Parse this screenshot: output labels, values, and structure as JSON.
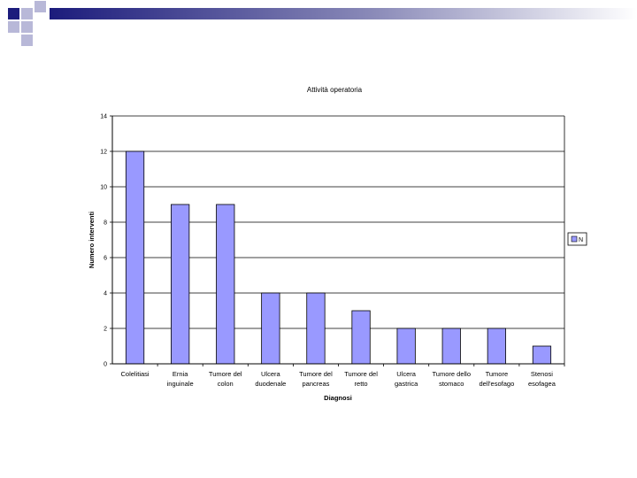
{
  "colors": {
    "bar": "#9999ff",
    "bar_stroke": "#000000",
    "grid": "#000000",
    "deco_dark": "#1c1c7c",
    "deco_light": "#b8b8d8"
  },
  "chart_data": {
    "type": "bar",
    "title": "Attività operatoria",
    "xlabel": "Diagnosi",
    "ylabel": "Numero interventi",
    "ylim": [
      0,
      14
    ],
    "yticks": [
      0,
      2,
      4,
      6,
      8,
      10,
      12,
      14
    ],
    "grid": true,
    "legend_position": "right",
    "categories": [
      [
        "Colelitiasi"
      ],
      [
        "Ernia",
        "inguinale"
      ],
      [
        "Tumore del",
        "colon"
      ],
      [
        "Ulcera",
        "duodenale"
      ],
      [
        "Tumore del",
        "pancreas"
      ],
      [
        "Tumore del",
        "retto"
      ],
      [
        "Ulcera",
        "gastrica"
      ],
      [
        "Tumore dello",
        "stomaco"
      ],
      [
        "Tumore",
        "dell'esofago"
      ],
      [
        "Stenosi",
        "esofagea"
      ]
    ],
    "series": [
      {
        "name": "N",
        "values": [
          12,
          9,
          9,
          4,
          4,
          3,
          2,
          2,
          2,
          1
        ]
      }
    ]
  }
}
